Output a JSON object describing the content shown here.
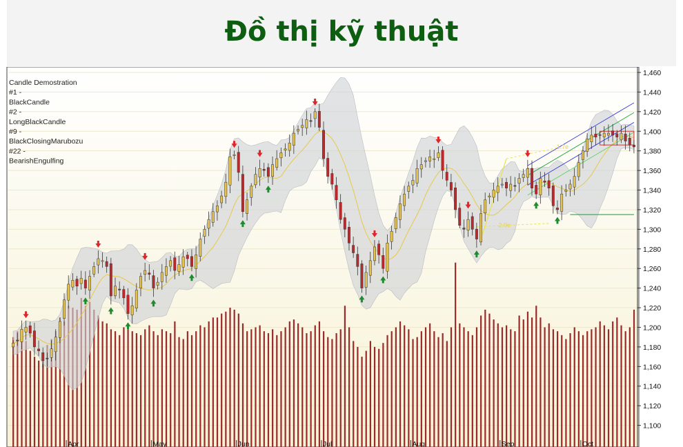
{
  "page": {
    "title": "Đồ thị kỹ thuật"
  },
  "chart_data": {
    "type": "candlestick",
    "legend": {
      "lines": [
        "Candle Demostration",
        "#1 -",
        "BlackCandle",
        "#2 -",
        "LongBlackCandle",
        "#9 -",
        "BlackClosingMarubozu",
        "#22 -",
        "BearishEngulfing"
      ]
    },
    "y_axis": {
      "min": 1080,
      "max": 1460,
      "ticks": [
        1100,
        1120,
        1140,
        1160,
        1180,
        1200,
        1220,
        1240,
        1260,
        1280,
        1300,
        1320,
        1340,
        1360,
        1380,
        1400,
        1420,
        1440,
        1460
      ],
      "tick_labels": [
        "1,100",
        "1,120",
        "1,140",
        "1,160",
        "1,180",
        "1,200",
        "1,220",
        "1,240",
        "1,260",
        "1,280",
        "1,300",
        "1,320",
        "1,340",
        "1,360",
        "1,380",
        "1,400",
        "1,420",
        "1,440",
        "1,460"
      ],
      "grid": true
    },
    "months": [
      {
        "label": "Apr",
        "index": 13
      },
      {
        "label": "May",
        "index": 33
      },
      {
        "label": "Jun",
        "index": 53
      },
      {
        "label": "Jul",
        "index": 73
      },
      {
        "label": "Aug",
        "index": 94
      },
      {
        "label": "Sep",
        "index": 115
      },
      {
        "label": "Oct",
        "index": 134
      }
    ],
    "fib_labels": [
      "1.7e",
      "2.0e"
    ],
    "colors": {
      "up": "#e6c24f",
      "down": "#c0282c",
      "volume": "#9b2a2a",
      "band": "#cfd2d6",
      "ma": "#e8c84a",
      "signal_down": "#e0262b",
      "signal_up": "#1f8a2e",
      "background": "#fbf8e8"
    },
    "closes": [
      1184,
      1186,
      1198,
      1200,
      1194,
      1180,
      1176,
      1166,
      1168,
      1178,
      1190,
      1206,
      1228,
      1244,
      1248,
      1242,
      1250,
      1240,
      1252,
      1262,
      1270,
      1268,
      1262,
      1232,
      1242,
      1238,
      1230,
      1214,
      1222,
      1238,
      1252,
      1258,
      1254,
      1240,
      1246,
      1256,
      1262,
      1268,
      1258,
      1264,
      1272,
      1270,
      1262,
      1274,
      1290,
      1300,
      1310,
      1318,
      1324,
      1334,
      1348,
      1374,
      1376,
      1358,
      1318,
      1330,
      1344,
      1356,
      1362,
      1360,
      1354,
      1366,
      1372,
      1378,
      1382,
      1388,
      1398,
      1402,
      1406,
      1412,
      1410,
      1420,
      1404,
      1372,
      1354,
      1346,
      1330,
      1310,
      1300,
      1286,
      1276,
      1262,
      1240,
      1256,
      1268,
      1282,
      1274,
      1260,
      1286,
      1298,
      1312,
      1326,
      1336,
      1344,
      1350,
      1362,
      1366,
      1370,
      1374,
      1372,
      1378,
      1360,
      1350,
      1340,
      1320,
      1304,
      1300,
      1310,
      1300,
      1290,
      1316,
      1330,
      1334,
      1340,
      1344,
      1346,
      1342,
      1346,
      1344,
      1352,
      1356,
      1362,
      1342,
      1336,
      1352,
      1348,
      1342,
      1324,
      1320,
      1336,
      1340,
      1346,
      1354,
      1368,
      1380,
      1392,
      1396,
      1394,
      1396,
      1398,
      1398,
      1396,
      1394,
      1398,
      1390,
      1386,
      1384
    ],
    "volumes": [
      1190,
      1196,
      1192,
      1186,
      1176,
      1170,
      1166,
      1174,
      1182,
      1188,
      1196,
      1210,
      1206,
      1222,
      1220,
      1218,
      1230,
      1222,
      1226,
      1218,
      1212,
      1206,
      1204,
      1198,
      1196,
      1192,
      1200,
      1198,
      1196,
      1194,
      1192,
      1198,
      1202,
      1196,
      1192,
      1198,
      1196,
      1194,
      1206,
      1190,
      1188,
      1196,
      1192,
      1196,
      1202,
      1200,
      1206,
      1210,
      1210,
      1214,
      1216,
      1220,
      1218,
      1214,
      1204,
      1196,
      1198,
      1200,
      1202,
      1196,
      1194,
      1198,
      1192,
      1196,
      1200,
      1206,
      1208,
      1204,
      1200,
      1194,
      1196,
      1202,
      1206,
      1196,
      1190,
      1188,
      1194,
      1198,
      1222,
      1200,
      1186,
      1180,
      1170,
      1176,
      1186,
      1180,
      1178,
      1184,
      1192,
      1196,
      1200,
      1206,
      1202,
      1198,
      1188,
      1190,
      1196,
      1200,
      1204,
      1196,
      1190,
      1194,
      1186,
      1200,
      1266,
      1204,
      1200,
      1196,
      1192,
      1200,
      1212,
      1218,
      1214,
      1208,
      1204,
      1200,
      1202,
      1198,
      1196,
      1212,
      1208,
      1216,
      1210,
      1222,
      1210,
      1200,
      1204,
      1198,
      1196,
      1192,
      1188,
      1194,
      1200,
      1196,
      1192,
      1196,
      1198,
      1200,
      1206,
      1202,
      1198,
      1206,
      1210,
      1202,
      1196,
      1200,
      1218
    ]
  }
}
